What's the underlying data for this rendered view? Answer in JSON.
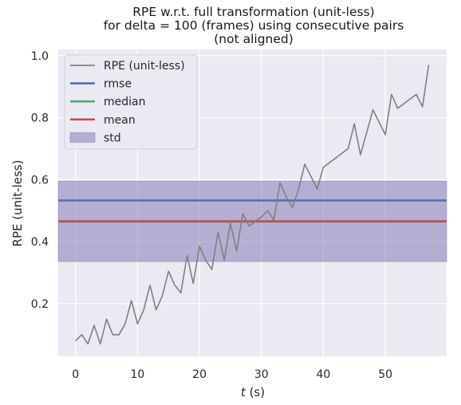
{
  "chart_data": {
    "type": "line",
    "title": [
      "RPE w.r.t. full transformation (unit-less)",
      "for delta = 100 (frames) using consecutive pairs",
      "(not aligned)"
    ],
    "xlabel_var": "t",
    "xlabel_unit": "(s)",
    "ylabel": "RPE (unit-less)",
    "xlim": [
      -2.8,
      59.9
    ],
    "ylim": [
      0.03,
      1.02
    ],
    "xticks": [
      0,
      10,
      20,
      30,
      40,
      50
    ],
    "yticks": [
      0.2,
      0.4,
      0.6,
      0.8,
      1.0
    ],
    "ytick_labels": [
      "0.2",
      "0.4",
      "0.6",
      "0.8",
      "1.0"
    ],
    "grid": true,
    "legend_position": "top-left",
    "colors": {
      "background": "#eaeaf2",
      "grid": "#ffffff",
      "rpe": "#808080",
      "rmse": "#4c72b0",
      "median": "#55a868",
      "mean": "#c44e52",
      "std_fill": "#8172b2"
    },
    "series": [
      {
        "name": "RPE (unit-less)",
        "x": [
          0,
          1,
          2,
          3,
          4,
          5,
          6,
          7,
          8,
          9,
          10,
          11,
          12,
          13,
          14,
          15,
          16,
          17,
          18,
          19,
          20,
          21,
          22,
          23,
          24,
          25,
          26,
          27,
          28,
          29,
          30,
          31,
          32,
          33,
          34,
          35,
          36,
          37,
          38,
          39,
          40,
          44,
          45,
          46,
          48,
          50,
          51,
          52,
          55,
          56,
          57
        ],
        "values": [
          0.08,
          0.1,
          0.07,
          0.13,
          0.07,
          0.15,
          0.1,
          0.1,
          0.135,
          0.21,
          0.135,
          0.18,
          0.26,
          0.18,
          0.225,
          0.305,
          0.26,
          0.235,
          0.355,
          0.265,
          0.385,
          0.34,
          0.31,
          0.43,
          0.34,
          0.46,
          0.37,
          0.49,
          0.45,
          0.465,
          0.48,
          0.5,
          0.47,
          0.59,
          0.545,
          0.51,
          0.57,
          0.65,
          0.61,
          0.57,
          0.64,
          0.7,
          0.78,
          0.68,
          0.825,
          0.745,
          0.875,
          0.83,
          0.875,
          0.835,
          0.97
        ]
      }
    ],
    "stats": {
      "rmse": 0.533,
      "median": 0.466,
      "mean": 0.465,
      "std_low": 0.336,
      "std_high": 0.595
    },
    "legend": [
      {
        "label": "RPE (unit-less)",
        "kind": "line",
        "color": "#808080"
      },
      {
        "label": "rmse",
        "kind": "line",
        "color": "#4c72b0"
      },
      {
        "label": "median",
        "kind": "line",
        "color": "#55a868"
      },
      {
        "label": "mean",
        "kind": "line",
        "color": "#c44e52"
      },
      {
        "label": "std",
        "kind": "patch",
        "color": "#8172b2"
      }
    ]
  }
}
